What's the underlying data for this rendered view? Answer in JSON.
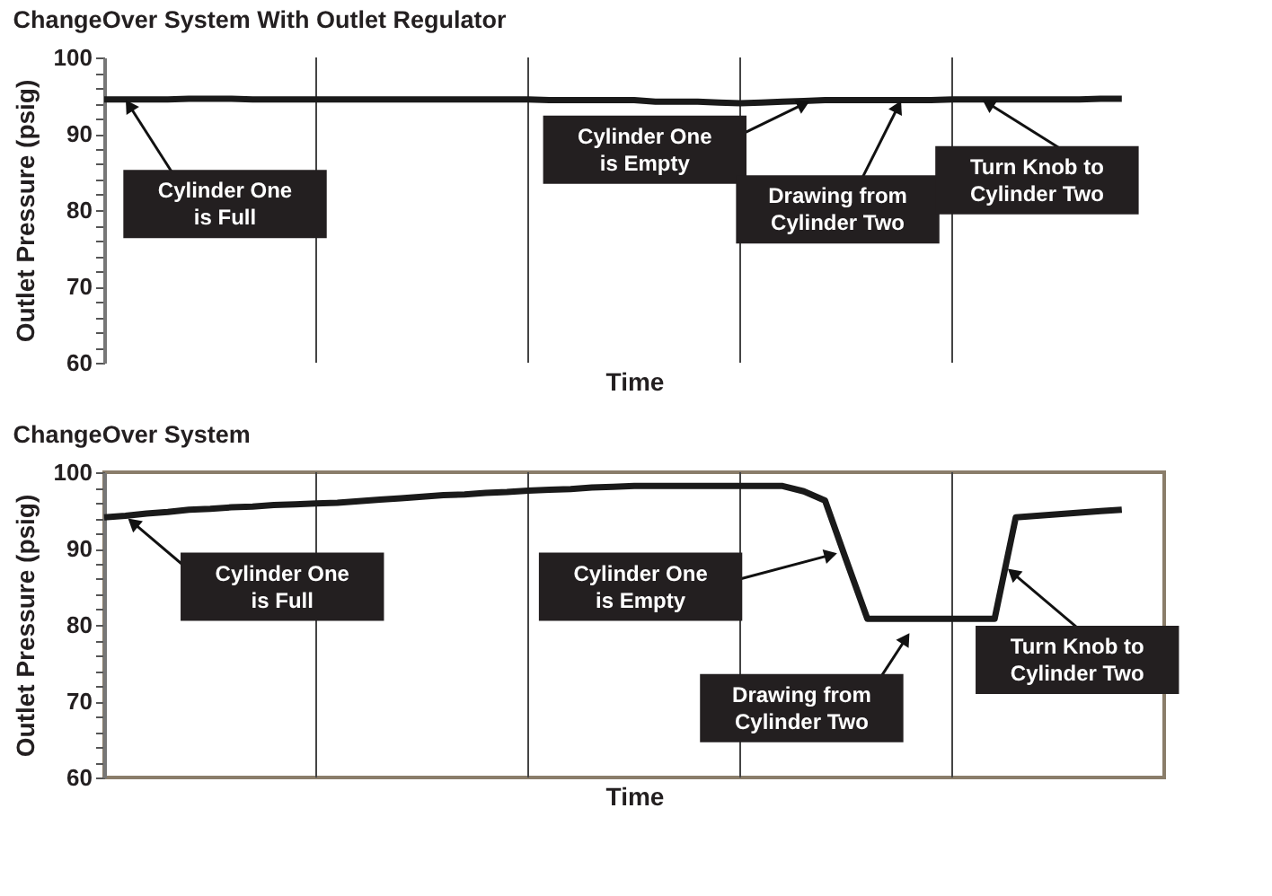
{
  "chart_data": [
    {
      "type": "line",
      "title": "ChangeOver System With Outlet Regulator",
      "xlabel": "Time",
      "ylabel": "Outlet Pressure (psig)",
      "categories": [
        null,
        null,
        null,
        null,
        null,
        null,
        null,
        null,
        null,
        null,
        null,
        null,
        null,
        null,
        null,
        null,
        null,
        null,
        null,
        null,
        null,
        null,
        null,
        null,
        null,
        null,
        null,
        null,
        null,
        null,
        null,
        null,
        null,
        null,
        null,
        null,
        null,
        null,
        null,
        null,
        null,
        null,
        null,
        null,
        null,
        null,
        null,
        null,
        null,
        null,
        null
      ],
      "series": [
        {
          "color": "#1a1a1a",
          "values": [
            94.5,
            94.5,
            94.5,
            94.5,
            94.6,
            94.6,
            94.6,
            94.5,
            94.5,
            94.5,
            94.5,
            94.5,
            94.5,
            94.5,
            94.5,
            94.5,
            94.5,
            94.5,
            94.5,
            94.5,
            94.5,
            94.4,
            94.4,
            94.4,
            94.4,
            94.4,
            94.2,
            94.2,
            94.2,
            94.1,
            94.0,
            94.1,
            94.2,
            94.3,
            94.4,
            94.4,
            94.4,
            94.4,
            94.4,
            94.4,
            94.5,
            94.5,
            94.5,
            94.5,
            94.5,
            94.5,
            94.5,
            94.6,
            94.6,
            null,
            null
          ]
        }
      ],
      "ylim": [
        60,
        100
      ],
      "yticks": [
        60,
        {
          "value": 62,
          "label": null
        },
        {
          "value": 64,
          "label": null
        },
        {
          "value": 66,
          "label": null
        },
        {
          "value": 68,
          "label": null
        },
        70,
        {
          "value": 72,
          "label": null
        },
        {
          "value": 74,
          "label": null
        },
        {
          "value": 76,
          "label": null
        },
        {
          "value": 78,
          "label": null
        },
        80,
        {
          "value": 82,
          "label": null
        },
        {
          "value": 84,
          "label": null
        },
        {
          "value": 86,
          "label": null
        },
        {
          "value": 88,
          "label": null
        },
        90,
        {
          "value": 92,
          "label": null
        },
        {
          "value": 94,
          "label": null
        },
        {
          "value": 96,
          "label": null
        },
        {
          "value": 98,
          "label": null
        },
        100
      ],
      "grid": true,
      "tick_labels": "y",
      "line_style": "solid",
      "marker": "none",
      "annotations": [
        "Cylinder One\nis Full",
        "Cylinder One\nis Empty",
        "Drawing from\nCylinder Two",
        "Turn Knob to\nCylinder Two"
      ]
    },
    {
      "type": "line",
      "title": "ChangeOver System",
      "xlabel": "Time",
      "ylabel": "Outlet Pressure (psig)",
      "categories": [
        null,
        null,
        null,
        null,
        null,
        null,
        null,
        null,
        null,
        null,
        null,
        null,
        null,
        null,
        null,
        null,
        null,
        null,
        null,
        null,
        null,
        null,
        null,
        null,
        null,
        null,
        null,
        null,
        null,
        null,
        null,
        null,
        null,
        null,
        null,
        null,
        null,
        null,
        null,
        null,
        null,
        null,
        null,
        null,
        null,
        null,
        null,
        null,
        null,
        null,
        null
      ],
      "series": [
        {
          "color": "#1a1a1a",
          "values": [
            94.1,
            94.3,
            94.6,
            94.8,
            95.1,
            95.2,
            95.4,
            95.5,
            95.7,
            95.8,
            95.9,
            96.0,
            96.2,
            96.4,
            96.6,
            96.8,
            97.0,
            97.1,
            97.3,
            97.4,
            97.6,
            97.7,
            97.8,
            98.0,
            98.1,
            98.2,
            98.2,
            98.2,
            98.2,
            98.2,
            98.2,
            98.2,
            98.2,
            97.5,
            96.3,
            88.5,
            80.8,
            80.8,
            80.8,
            80.8,
            80.8,
            80.8,
            80.8,
            94.1,
            94.3,
            94.5,
            94.7,
            94.9,
            95.1,
            null,
            null
          ]
        }
      ],
      "ylim": [
        60,
        100
      ],
      "yticks": [
        60,
        {
          "value": 62,
          "label": null
        },
        {
          "value": 64,
          "label": null
        },
        {
          "value": 66,
          "label": null
        },
        {
          "value": 68,
          "label": null
        },
        70,
        {
          "value": 72,
          "label": null
        },
        {
          "value": 74,
          "label": null
        },
        {
          "value": 76,
          "label": null
        },
        {
          "value": 78,
          "label": null
        },
        80,
        {
          "value": 82,
          "label": null
        },
        {
          "value": 84,
          "label": null
        },
        {
          "value": 86,
          "label": null
        },
        {
          "value": 88,
          "label": null
        },
        90,
        {
          "value": 92,
          "label": null
        },
        {
          "value": 94,
          "label": null
        },
        {
          "value": 96,
          "label": null
        },
        {
          "value": 98,
          "label": null
        },
        100
      ],
      "grid": true,
      "tick_labels": "y",
      "line_style": "solid",
      "marker": "none",
      "annotations": [
        "Cylinder One\nis Full",
        "Cylinder One\nis Empty",
        "Drawing from\nCylinder Two",
        "Turn Knob to\nCylinder Two"
      ]
    }
  ]
}
